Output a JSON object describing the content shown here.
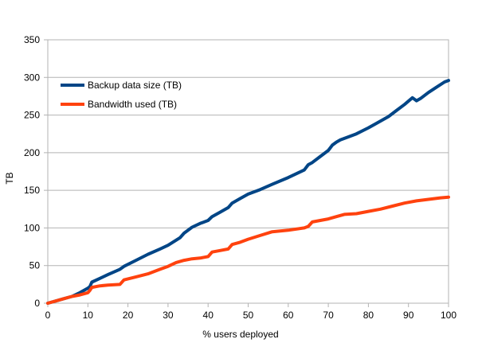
{
  "chart_data": {
    "type": "line",
    "title": "",
    "xlabel": "% users deployed",
    "ylabel": "TB",
    "xlim": [
      0,
      100
    ],
    "ylim": [
      0,
      350
    ],
    "x_ticks": [
      "0",
      "10",
      "20",
      "30",
      "40",
      "50",
      "60",
      "70",
      "80",
      "90",
      "100"
    ],
    "y_ticks": [
      "0",
      "50",
      "100",
      "150",
      "200",
      "250",
      "300",
      "350"
    ],
    "grid": "horizontal",
    "legend": "top-left",
    "series": [
      {
        "name": "Backup data size  (TB)",
        "color": "#004586",
        "points": [
          [
            0,
            0
          ],
          [
            2,
            3
          ],
          [
            4,
            6
          ],
          [
            6,
            9
          ],
          [
            8,
            14
          ],
          [
            10,
            20
          ],
          [
            10.5,
            22
          ],
          [
            11,
            28
          ],
          [
            13,
            33
          ],
          [
            15,
            38
          ],
          [
            18,
            45
          ],
          [
            19,
            49
          ],
          [
            22,
            57
          ],
          [
            25,
            65
          ],
          [
            28,
            72
          ],
          [
            30,
            77
          ],
          [
            33,
            87
          ],
          [
            34,
            93
          ],
          [
            36,
            101
          ],
          [
            38,
            106
          ],
          [
            40,
            110
          ],
          [
            41,
            115
          ],
          [
            43,
            121
          ],
          [
            45,
            127
          ],
          [
            46,
            133
          ],
          [
            48,
            139
          ],
          [
            50,
            145
          ],
          [
            53,
            151
          ],
          [
            56,
            158
          ],
          [
            60,
            167
          ],
          [
            64,
            177
          ],
          [
            65,
            184
          ],
          [
            66,
            187
          ],
          [
            68,
            195
          ],
          [
            70,
            203
          ],
          [
            71,
            210
          ],
          [
            72,
            214
          ],
          [
            73,
            217
          ],
          [
            75,
            221
          ],
          [
            77,
            225
          ],
          [
            80,
            233
          ],
          [
            82,
            239
          ],
          [
            85,
            248
          ],
          [
            87,
            256
          ],
          [
            89,
            264
          ],
          [
            91,
            273
          ],
          [
            92,
            269
          ],
          [
            93,
            272
          ],
          [
            95,
            280
          ],
          [
            97,
            287
          ],
          [
            99,
            294
          ],
          [
            100,
            296
          ]
        ]
      },
      {
        "name": "Bandwidth used (TB)",
        "color": "#ff420e",
        "points": [
          [
            0,
            0
          ],
          [
            2,
            3
          ],
          [
            4,
            6
          ],
          [
            6,
            9
          ],
          [
            8,
            11
          ],
          [
            10,
            14
          ],
          [
            10.5,
            17
          ],
          [
            11,
            21
          ],
          [
            13,
            23
          ],
          [
            15,
            24
          ],
          [
            18,
            25
          ],
          [
            19,
            31
          ],
          [
            22,
            35
          ],
          [
            25,
            39
          ],
          [
            28,
            45
          ],
          [
            30,
            49
          ],
          [
            32,
            54
          ],
          [
            34,
            57
          ],
          [
            36,
            59
          ],
          [
            38,
            60
          ],
          [
            40,
            62
          ],
          [
            41,
            68
          ],
          [
            43,
            70
          ],
          [
            45,
            72
          ],
          [
            46,
            78
          ],
          [
            48,
            81
          ],
          [
            50,
            85
          ],
          [
            53,
            90
          ],
          [
            56,
            95
          ],
          [
            60,
            97
          ],
          [
            64,
            100
          ],
          [
            65,
            102
          ],
          [
            66,
            108
          ],
          [
            68,
            110
          ],
          [
            70,
            112
          ],
          [
            72,
            115
          ],
          [
            74,
            118
          ],
          [
            77,
            119
          ],
          [
            80,
            122
          ],
          [
            83,
            125
          ],
          [
            86,
            129
          ],
          [
            89,
            133
          ],
          [
            92,
            136
          ],
          [
            95,
            138
          ],
          [
            98,
            140
          ],
          [
            100,
            141
          ]
        ]
      }
    ]
  }
}
